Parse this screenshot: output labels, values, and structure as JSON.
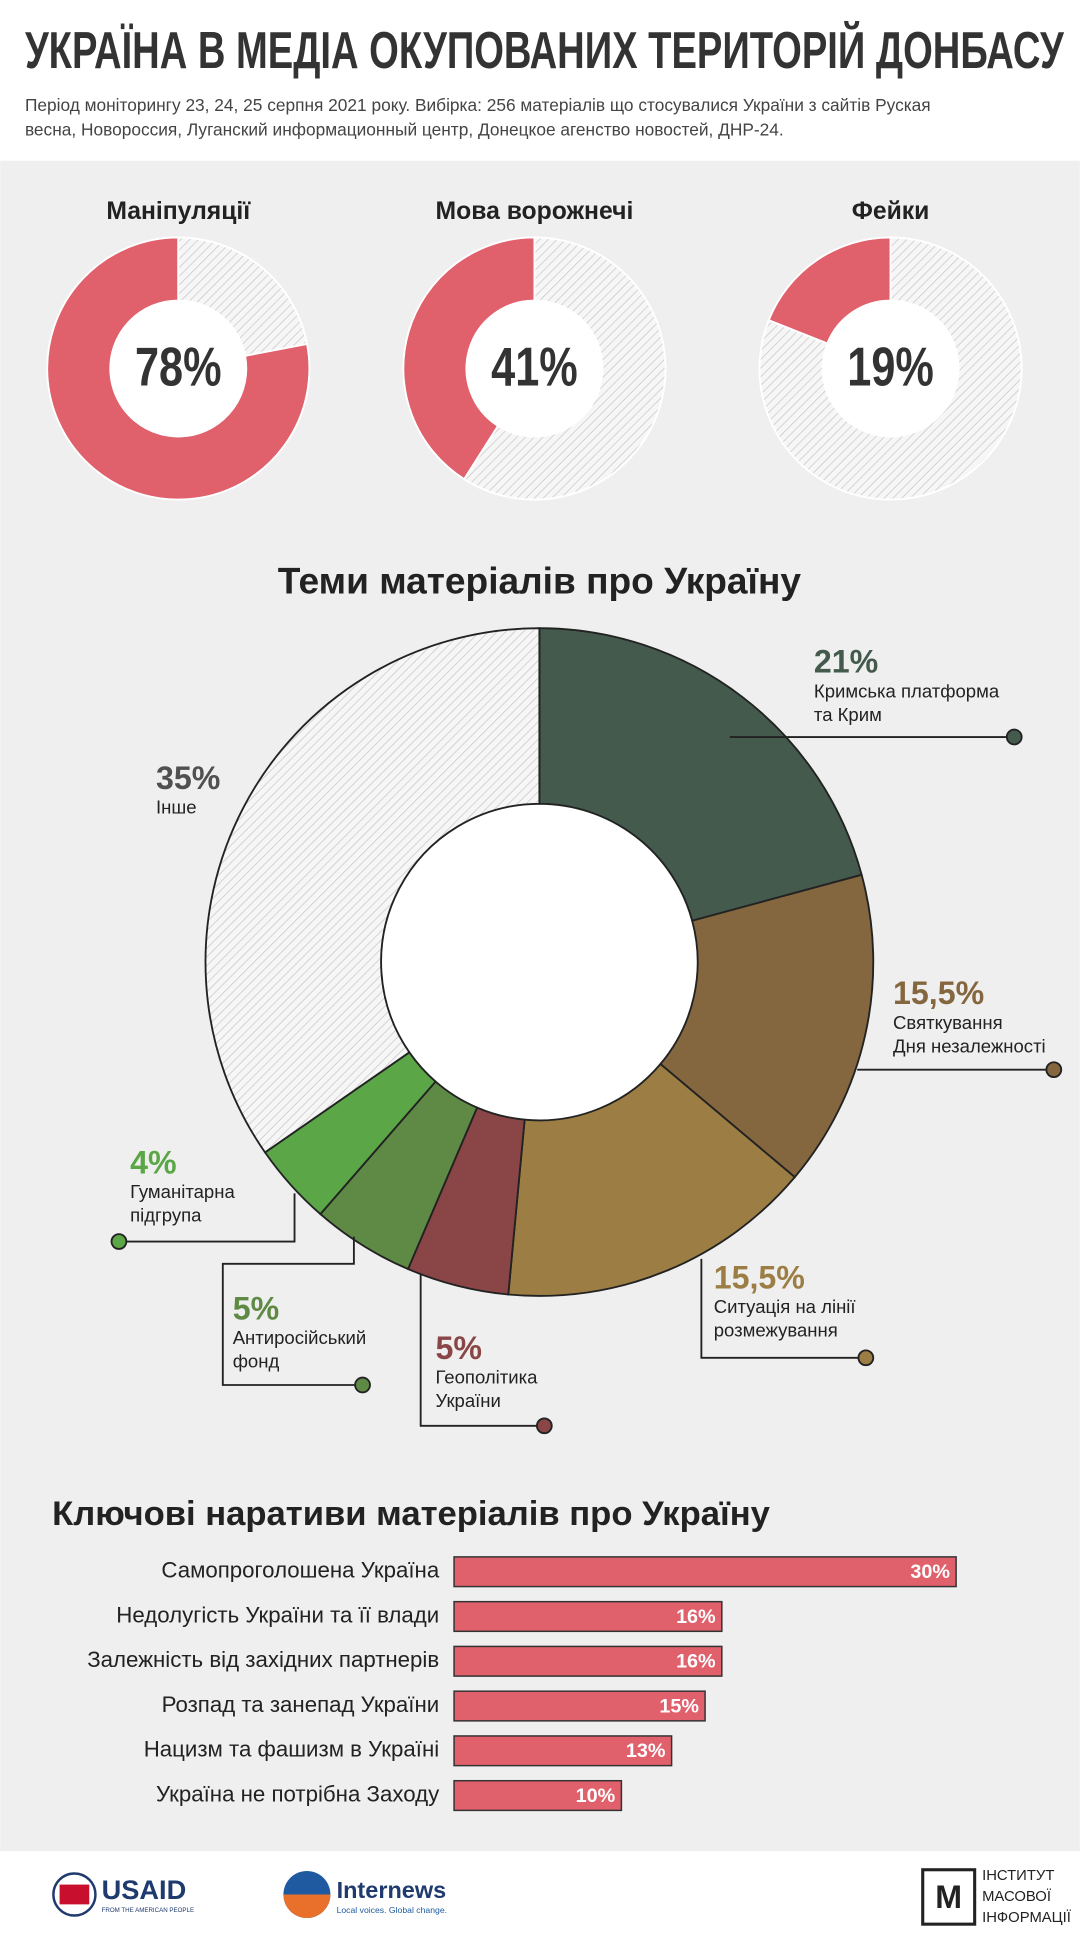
{
  "header": {
    "title": "УКРАЇНА В МЕДІА ОКУПОВАНИХ ТЕРИТОРІЙ ДОНБАСУ",
    "subtitle": [
      "Період моніторингу 23, 24, 25 серпня 2021 року. Вибірка: 256 матеріалів що стосувалися України з сайтів  Руская",
      "весна, Новороссия, Луганский информационный центр, Донецкое агенство новостей, ДНР-24."
    ]
  },
  "chart_data": [
    {
      "type": "donut",
      "title": "Маніпуляції",
      "values": [
        78,
        22
      ],
      "value_labels": [
        "78%",
        null
      ],
      "colors": [
        "#e0606c",
        "#c8c8c8"
      ],
      "hatched": [
        false,
        true
      ],
      "clockwise": false
    },
    {
      "type": "donut",
      "title": "Мова ворожнечі",
      "values": [
        41,
        59
      ],
      "value_labels": [
        "41%",
        null
      ],
      "colors": [
        "#e0606c",
        "#c8c8c8"
      ],
      "hatched": [
        false,
        true
      ],
      "clockwise": false
    },
    {
      "type": "donut",
      "title": "Фейки",
      "values": [
        19,
        81
      ],
      "value_labels": [
        "19%",
        null
      ],
      "colors": [
        "#e0606c",
        "#c8c8c8"
      ],
      "hatched": [
        false,
        true
      ],
      "clockwise": false
    },
    {
      "type": "bigdonut",
      "title": "Теми матеріалів про Україну",
      "categories": [
        [
          "Кримська платформа",
          "та Крим"
        ],
        [
          "Святкування",
          "Дня незалежності"
        ],
        [
          "Ситуація на лінії",
          "розмежування"
        ],
        [
          "Геополітика",
          "України"
        ],
        [
          "Антиросійський",
          "фонд"
        ],
        [
          "Гуманітарна",
          "підгрупа"
        ],
        [
          "Інше"
        ]
      ],
      "values": [
        21,
        15.5,
        15.5,
        5,
        5,
        4,
        35
      ],
      "value_labels": [
        "21%",
        "15,5%",
        "15,5%",
        "5%",
        "5%",
        "4%",
        "35%"
      ],
      "colors": [
        "#435a4d",
        "#85673f",
        "#9c7e45",
        "#8a4647",
        "#5f8a45",
        "#5ba646",
        "#c8c8c8"
      ],
      "hatched": [
        false,
        false,
        false,
        false,
        false,
        false,
        true
      ],
      "clockwise": true
    },
    {
      "type": "hbar",
      "title": "Ключові наративи матеріалів про Україну",
      "categories": [
        "Самопроголошена Україна",
        "Недолугість України та її влади",
        "Залежність від західних партнерів",
        "Розпад та занепад України",
        "Нацизм та фашизм в Україні",
        "Україна не потрібна Заходу"
      ],
      "values": [
        30,
        16,
        16,
        15,
        13,
        10
      ],
      "value_labels": [
        "30%",
        "16%",
        "16%",
        "15%",
        "13%",
        "10%"
      ],
      "color": "#e0606c"
    }
  ],
  "footer": {
    "usaid": "USAID",
    "usaid_tagline": "FROM THE AMERICAN PEOPLE",
    "internews": "Internews",
    "internews_tagline": "Local voices. Global change.",
    "imi": [
      "ІНСТИТУТ",
      "МАСОВОЇ",
      "ІНФОРМАЦІЇ"
    ]
  }
}
